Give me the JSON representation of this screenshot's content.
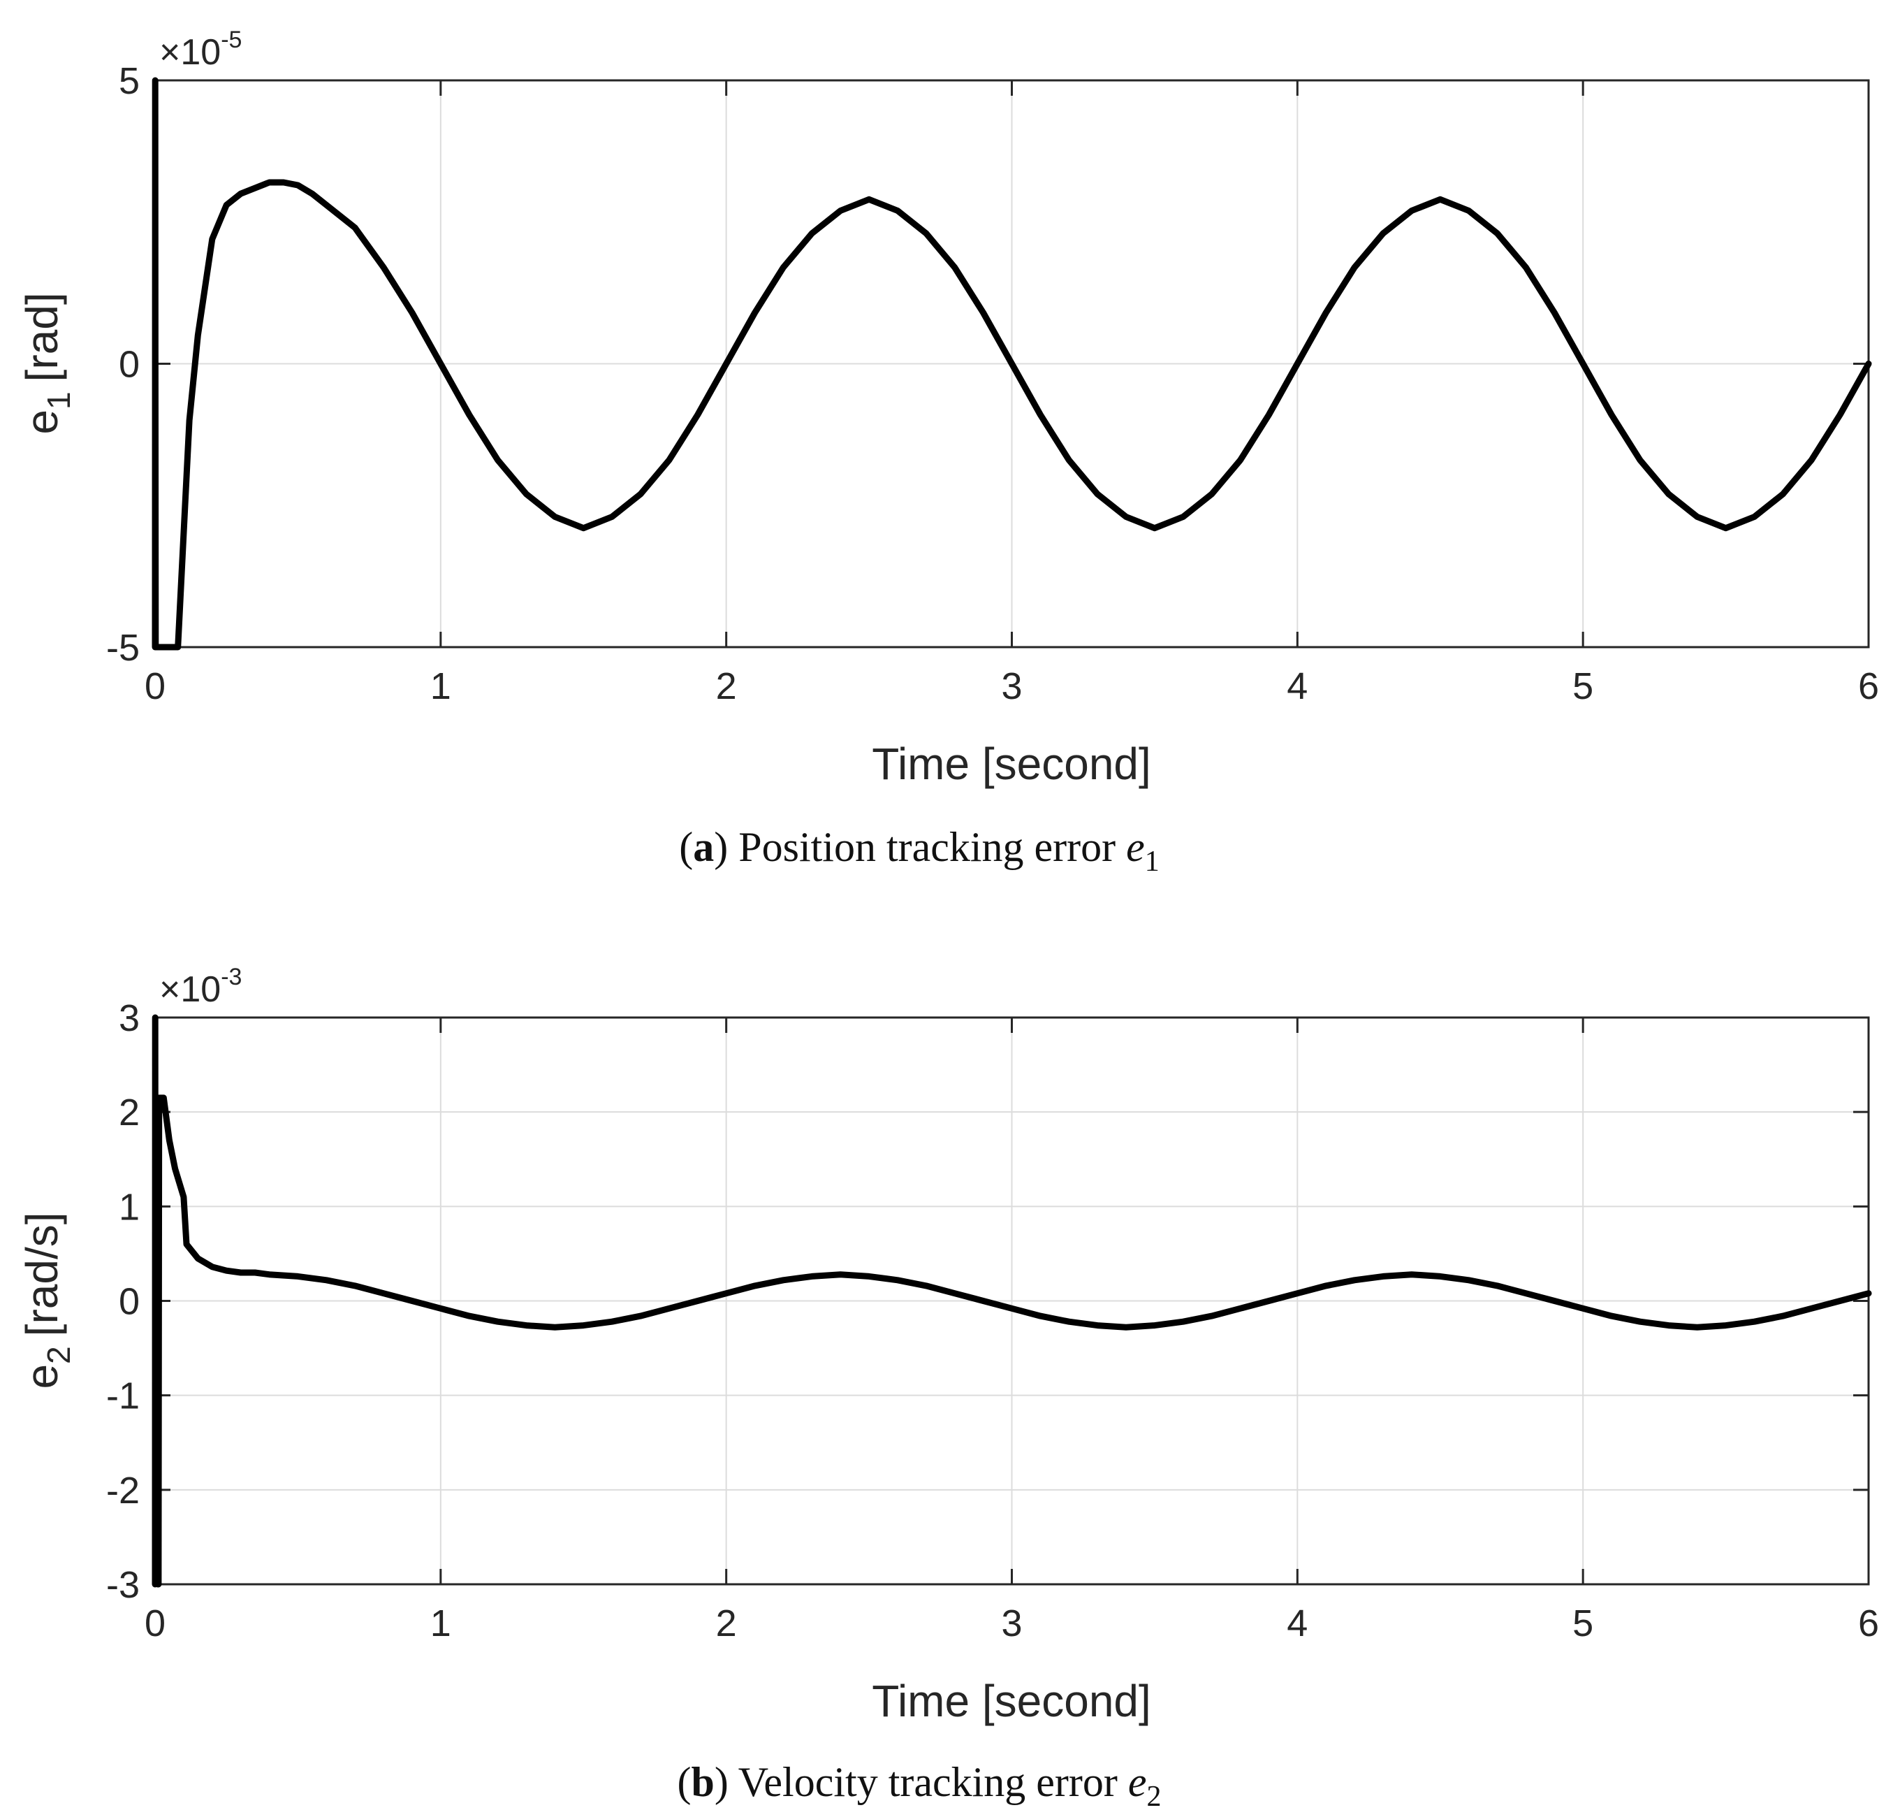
{
  "chart_data": [
    {
      "id": "a",
      "type": "line",
      "caption_letter": "a",
      "caption_text": "Position tracking error",
      "caption_var": "e",
      "caption_sub": "1",
      "xlabel": "Time [second]",
      "ylabel_base": "e",
      "ylabel_sub": "1",
      "ylabel_unit": "[rad]",
      "exponent_prefix": "×10",
      "exponent": "-5",
      "xlim": [
        0,
        6
      ],
      "ylim": [
        -5,
        5
      ],
      "xticks": [
        0,
        1,
        2,
        3,
        4,
        5,
        6
      ],
      "xtick_labels": [
        "0",
        "1",
        "2",
        "3",
        "4",
        "5",
        "6"
      ],
      "yticks": [
        -5,
        0,
        5
      ],
      "ytick_labels": [
        "-5",
        "0",
        "5"
      ],
      "grid": true,
      "series": [
        {
          "name": "e1",
          "x": [
            0,
            0.0005,
            0.001,
            0.002,
            0.003,
            0.02,
            0.04,
            0.06,
            0.08,
            0.1,
            0.12,
            0.15,
            0.2,
            0.25,
            0.3,
            0.35,
            0.4,
            0.45,
            0.5,
            0.55,
            0.6,
            0.7,
            0.8,
            0.9,
            1.0,
            1.1,
            1.2,
            1.3,
            1.4,
            1.5,
            1.6,
            1.7,
            1.8,
            1.9,
            2.0,
            2.1,
            2.2,
            2.3,
            2.4,
            2.5,
            2.6,
            2.7,
            2.8,
            2.9,
            3.0,
            3.1,
            3.2,
            3.3,
            3.4,
            3.5,
            3.6,
            3.7,
            3.8,
            3.9,
            4.0,
            4.1,
            4.2,
            4.3,
            4.4,
            4.5,
            4.6,
            4.7,
            4.8,
            4.9,
            5.0,
            5.1,
            5.2,
            5.3,
            5.4,
            5.5,
            5.6,
            5.7,
            5.8,
            5.9,
            6.0
          ],
          "values": [
            -5,
            5,
            0,
            -5,
            -5,
            -5,
            -5,
            -5,
            -5,
            -3,
            -1,
            0.5,
            2.2,
            2.8,
            3.0,
            3.1,
            3.2,
            3.2,
            3.15,
            3.0,
            2.8,
            2.4,
            1.7,
            0.9,
            0.0,
            -0.9,
            -1.7,
            -2.3,
            -2.7,
            -2.9,
            -2.7,
            -2.3,
            -1.7,
            -0.9,
            0.0,
            0.9,
            1.7,
            2.3,
            2.7,
            2.9,
            2.7,
            2.3,
            1.7,
            0.9,
            0.0,
            -0.9,
            -1.7,
            -2.3,
            -2.7,
            -2.9,
            -2.7,
            -2.3,
            -1.7,
            -0.9,
            0.0,
            0.9,
            1.7,
            2.3,
            2.7,
            2.9,
            2.7,
            2.3,
            1.7,
            0.9,
            0.0,
            -0.9,
            -1.7,
            -2.3,
            -2.7,
            -2.9,
            -2.7,
            -2.3,
            -1.7,
            -0.9,
            0.0
          ]
        }
      ]
    },
    {
      "id": "b",
      "type": "line",
      "caption_letter": "b",
      "caption_text": "Velocity tracking error",
      "caption_var": "e",
      "caption_sub": "2",
      "xlabel": "Time [second]",
      "ylabel_base": "e",
      "ylabel_sub": "2",
      "ylabel_unit": "[rad/s]",
      "exponent_prefix": "×10",
      "exponent": "-3",
      "xlim": [
        0,
        6
      ],
      "ylim": [
        -3,
        3
      ],
      "xticks": [
        0,
        1,
        2,
        3,
        4,
        5,
        6
      ],
      "xtick_labels": [
        "0",
        "1",
        "2",
        "3",
        "4",
        "5",
        "6"
      ],
      "yticks": [
        -3,
        -2,
        -1,
        0,
        1,
        2,
        3
      ],
      "ytick_labels": [
        "-3",
        "-2",
        "-1",
        "0",
        "1",
        "2",
        "3"
      ],
      "grid": true,
      "series": [
        {
          "name": "e2",
          "x": [
            0,
            0.0005,
            0.001,
            0.01,
            0.012,
            0.014,
            0.03,
            0.05,
            0.07,
            0.1,
            0.11,
            0.15,
            0.2,
            0.25,
            0.3,
            0.35,
            0.4,
            0.5,
            0.6,
            0.7,
            0.8,
            0.9,
            1.0,
            1.1,
            1.2,
            1.3,
            1.4,
            1.5,
            1.6,
            1.7,
            1.8,
            1.9,
            2.0,
            2.1,
            2.2,
            2.3,
            2.4,
            2.5,
            2.6,
            2.7,
            2.8,
            2.9,
            3.0,
            3.1,
            3.2,
            3.3,
            3.4,
            3.5,
            3.6,
            3.7,
            3.8,
            3.9,
            4.0,
            4.1,
            4.2,
            4.3,
            4.4,
            4.5,
            4.6,
            4.7,
            4.8,
            4.9,
            5.0,
            5.1,
            5.2,
            5.3,
            5.4,
            5.5,
            5.6,
            5.7,
            5.8,
            5.9,
            6.0
          ],
          "values": [
            -3,
            3,
            0,
            -3,
            -3,
            2.15,
            2.15,
            1.7,
            1.4,
            1.1,
            0.6,
            0.45,
            0.36,
            0.32,
            0.3,
            0.3,
            0.28,
            0.26,
            0.22,
            0.16,
            0.08,
            0.0,
            -0.08,
            -0.16,
            -0.22,
            -0.26,
            -0.28,
            -0.26,
            -0.22,
            -0.16,
            -0.08,
            0.0,
            0.08,
            0.16,
            0.22,
            0.26,
            0.28,
            0.26,
            0.22,
            0.16,
            0.08,
            0.0,
            -0.08,
            -0.16,
            -0.22,
            -0.26,
            -0.28,
            -0.26,
            -0.22,
            -0.16,
            -0.08,
            0.0,
            0.08,
            0.16,
            0.22,
            0.26,
            0.28,
            0.26,
            0.22,
            0.16,
            0.08,
            0.0,
            -0.08,
            -0.16,
            -0.22,
            -0.26,
            -0.28,
            -0.26,
            -0.22,
            -0.16,
            -0.08,
            0.0,
            0.08
          ]
        }
      ]
    }
  ]
}
